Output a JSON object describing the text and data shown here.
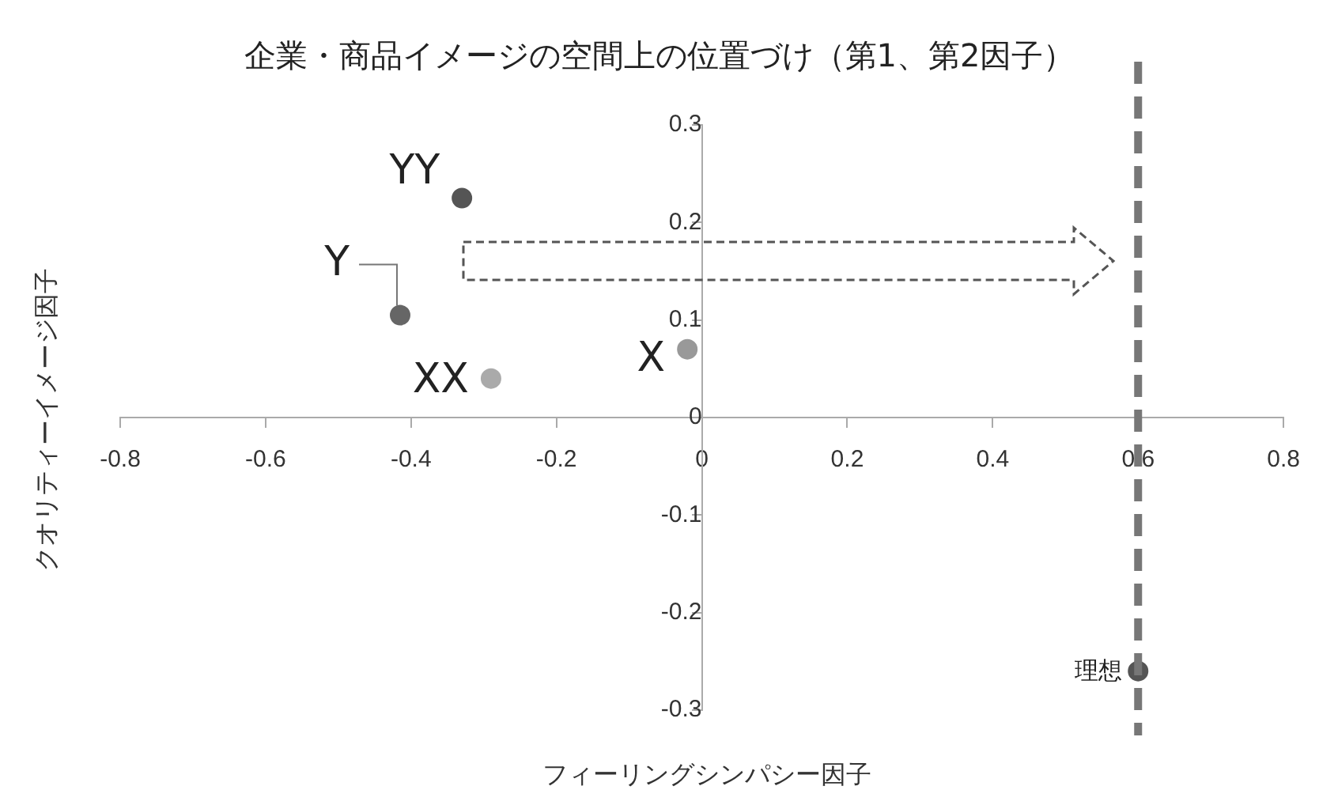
{
  "chart_data": {
    "type": "scatter",
    "title": "企業・商品イメージの空間上の位置づけ（第1、第2因子）",
    "xlabel": "フィーリングシンパシー因子",
    "ylabel": "クオリティーイメージ因子",
    "x": [
      -0.33,
      -0.415,
      -0.29,
      -0.02,
      0.6
    ],
    "values": [
      0.225,
      0.105,
      0.04,
      0.07,
      -0.26
    ],
    "colors": [
      "#555555",
      "#666666",
      "#aaaaaa",
      "#999999",
      "#555555"
    ],
    "marker": "circle",
    "xlim": [
      -0.8,
      0.8
    ],
    "xticks": [
      -0.8,
      -0.6,
      -0.4,
      -0.2,
      0,
      0.2,
      0.4,
      0.6,
      0.8
    ],
    "ylim": [
      -0.3,
      0.3
    ],
    "yticks": [
      -0.3,
      -0.2,
      -0.1,
      0,
      0.1,
      0.2,
      0.3
    ],
    "grid": false,
    "legend": false,
    "ref_lines": [
      {
        "axis": "x",
        "value": 0.6,
        "color": "#777777",
        "line_style": "dashed"
      }
    ],
    "annotations": [
      {
        "text": "YY",
        "x": -0.33,
        "y": 0.225
      },
      {
        "text": "Y",
        "x": -0.415,
        "y": 0.105
      },
      {
        "text": "XX",
        "x": -0.29,
        "y": 0.04
      },
      {
        "text": "X",
        "x": -0.02,
        "y": 0.07
      },
      {
        "text": "理想",
        "x": 0.6,
        "y": -0.26
      }
    ]
  }
}
